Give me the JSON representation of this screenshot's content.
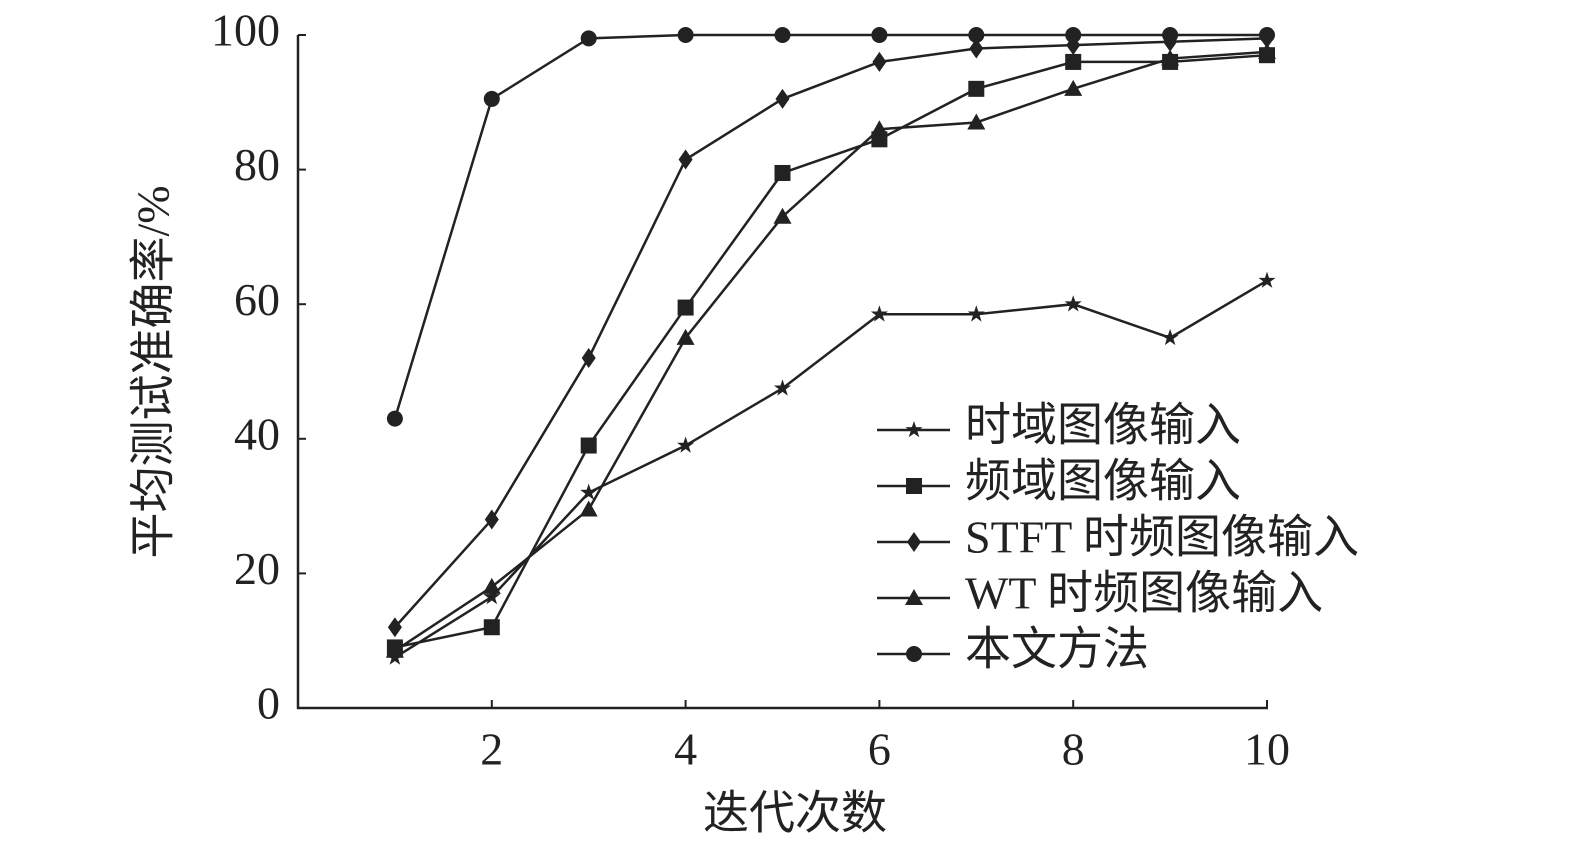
{
  "chart_data": {
    "type": "line",
    "x_label": "迭代次数",
    "y_label": "平均测试准确率/%",
    "x": [
      1,
      2,
      3,
      4,
      5,
      6,
      7,
      8,
      9,
      10
    ],
    "xlim": [
      0,
      10
    ],
    "xticks": [
      2,
      4,
      6,
      8,
      10
    ],
    "ylim": [
      0,
      100
    ],
    "yticks": [
      0,
      20,
      40,
      60,
      80,
      100
    ],
    "grid": false,
    "legend_position": "lower right",
    "series": [
      {
        "name": "时域图像输入",
        "color": "#222222",
        "marker": "star",
        "values": [
          7.5,
          16.5,
          32,
          39,
          47.5,
          58.5,
          58.5,
          60,
          55,
          63.5
        ]
      },
      {
        "name": "频域图像输入",
        "color": "#222222",
        "marker": "square",
        "values": [
          9,
          12,
          39,
          59.5,
          79.5,
          84.5,
          92,
          96,
          96,
          97
        ]
      },
      {
        "name": "STFT 时频图像输入",
        "color": "#222222",
        "marker": "diamond",
        "values": [
          12,
          28,
          52,
          81.5,
          90.5,
          96,
          98,
          98.5,
          99,
          99.5
        ]
      },
      {
        "name": "WT 时频图像输入",
        "color": "#222222",
        "marker": "triangle",
        "values": [
          8.5,
          18,
          29.5,
          55,
          73,
          86,
          87,
          92,
          96.5,
          97.5
        ]
      },
      {
        "name": "本文方法",
        "color": "#222222",
        "marker": "circle",
        "values": [
          43,
          90.5,
          99.5,
          100,
          100,
          100,
          100,
          100,
          100,
          100
        ]
      }
    ]
  }
}
